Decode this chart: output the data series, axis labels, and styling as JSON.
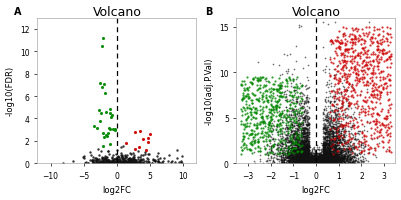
{
  "title": "Volcano",
  "panel_A": {
    "label": "A",
    "xlabel": "log2FC",
    "ylabel": "-log10(FDR)",
    "xlim": [
      -12,
      12
    ],
    "ylim": [
      0,
      13
    ],
    "xticks": [
      -10,
      -5,
      0,
      5,
      10
    ],
    "yticks": [
      0,
      2,
      4,
      6,
      8,
      10,
      12
    ],
    "vline_x": 0
  },
  "panel_B": {
    "label": "B",
    "xlabel": "log2FC",
    "ylabel": "-log10(adj.P.Val)",
    "xlim": [
      -3.5,
      3.5
    ],
    "ylim": [
      0,
      16
    ],
    "xticks": [
      -3,
      -2,
      -1,
      0,
      1,
      2,
      3
    ],
    "yticks": [
      0,
      5,
      10,
      15
    ],
    "vline_x": 0
  },
  "black_color": "#111111",
  "green_color": "#008800",
  "red_color": "#cc0000",
  "background_color": "#ffffff",
  "title_fontsize": 9,
  "label_fontsize": 6,
  "tick_fontsize": 5.5
}
